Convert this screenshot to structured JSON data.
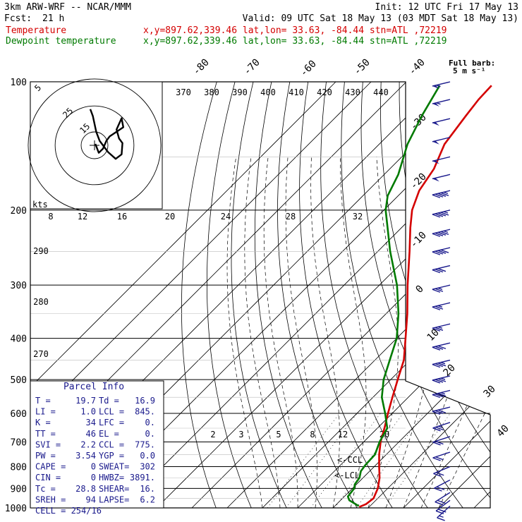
{
  "header": {
    "model": "3km ARW-WRF -- NCAR/MMM",
    "init": "Init: 12 UTC Fri 17 May 13",
    "fcst_label": "Fcst:",
    "fcst_value": "21 h",
    "valid": "Valid: 09 UTC Sat 18 May 13 (03 MDT Sat 18 May 13)",
    "temp_label": "Temperature",
    "temp_info": "x,y=897.62,339.46   lat,lon= 33.63, -84.44  stn=ATL ,72219",
    "dew_label": "Dewpoint temperature",
    "dew_info": "x,y=897.62,339.46   lat,lon= 33.63, -84.44  stn=ATL ,72219",
    "full_barb_1": "Full barb:",
    "full_barb_2": "5 m s⁻¹"
  },
  "colors": {
    "temperature": "#d40000",
    "dewpoint": "#007a00",
    "parcel_text": "#1a1a8c"
  },
  "chart_data": {
    "type": "line",
    "pressure_ticks": [
      "100",
      "200",
      "300",
      "400",
      "500",
      "600",
      "700",
      "800",
      "900",
      "1000"
    ],
    "pressure_values": [
      100,
      200,
      300,
      400,
      500,
      600,
      700,
      800,
      900,
      1000
    ],
    "ylim": [
      100,
      1000
    ],
    "y_scale": "log",
    "isotherm_labels": [
      "-80",
      "-70",
      "-60",
      "-50",
      "-40",
      "-30",
      "-20",
      "-10",
      "0",
      "10",
      "20",
      "30",
      "40"
    ],
    "theta_labels": [
      "370",
      "380",
      "390",
      "400",
      "410",
      "420",
      "430",
      "440"
    ],
    "theta_left_labels": [
      "290",
      "280",
      "270"
    ],
    "mixing_ratio_labels": [
      "2",
      "3",
      "5",
      "8",
      "12",
      "20"
    ],
    "hodograph_axis_labels": [
      "8",
      "12",
      "16",
      "20",
      "24",
      "28",
      "32"
    ],
    "hodograph_unit": "kts",
    "hodograph_ring_labels": [
      "5",
      "25",
      "15"
    ],
    "hodograph_points": [
      [
        -0.5,
        -16
      ],
      [
        -0.2,
        -13
      ],
      [
        0.2,
        -6
      ],
      [
        0.6,
        -2
      ],
      [
        1.6,
        3
      ],
      [
        2.5,
        6
      ],
      [
        3.2,
        4
      ],
      [
        3.3,
        -1
      ],
      [
        2.9,
        -3
      ],
      [
        2.6,
        -7
      ],
      [
        3.2,
        -12
      ],
      [
        3.4,
        -8
      ],
      [
        1.8,
        -4
      ],
      [
        1.4,
        -2
      ],
      [
        1.0,
        1.5
      ],
      [
        0.5,
        3.3
      ],
      [
        0.1,
        -0.6
      ]
    ],
    "annotations": [
      "<-CCL",
      "<-LCL"
    ],
    "series": [
      {
        "name": "Temperature",
        "points": [
          [
            995,
            17.2
          ],
          [
            980,
            18.3
          ],
          [
            950,
            18.8
          ],
          [
            900,
            17.2
          ],
          [
            850,
            14.7
          ],
          [
            800,
            11.4
          ],
          [
            750,
            8.0
          ],
          [
            700,
            4.8
          ],
          [
            650,
            2.0
          ],
          [
            600,
            -1.2
          ],
          [
            550,
            -4.5
          ],
          [
            500,
            -8.0
          ],
          [
            450,
            -11.8
          ],
          [
            400,
            -17.5
          ],
          [
            350,
            -24.0
          ],
          [
            300,
            -32.0
          ],
          [
            250,
            -41.0
          ],
          [
            220,
            -47.5
          ],
          [
            200,
            -52.0
          ],
          [
            180,
            -55.5
          ],
          [
            160,
            -57.5
          ],
          [
            140,
            -61.5
          ],
          [
            120,
            -63.5
          ],
          [
            110,
            -64.5
          ],
          [
            102,
            -64.8
          ]
        ]
      },
      {
        "name": "Dewpoint temperature",
        "points": [
          [
            990,
            16.8
          ],
          [
            960,
            12.5
          ],
          [
            940,
            11.0
          ],
          [
            900,
            10.5
          ],
          [
            880,
            9.5
          ],
          [
            850,
            9.0
          ],
          [
            820,
            7.5
          ],
          [
            790,
            7.0
          ],
          [
            750,
            6.8
          ],
          [
            700,
            4.5
          ],
          [
            650,
            2.8
          ],
          [
            600,
            -2.0
          ],
          [
            550,
            -7.5
          ],
          [
            500,
            -12.0
          ],
          [
            450,
            -15.8
          ],
          [
            400,
            -20.0
          ],
          [
            350,
            -26.5
          ],
          [
            300,
            -35.0
          ],
          [
            250,
            -46.5
          ],
          [
            200,
            -59.5
          ],
          [
            185,
            -63.0
          ],
          [
            165,
            -66.0
          ],
          [
            140,
            -72.0
          ],
          [
            120,
            -76.0
          ],
          [
            102,
            -79.5
          ]
        ]
      }
    ]
  },
  "parcel": {
    "title": "Parcel Info",
    "rows": [
      [
        "T    =",
        "19.7",
        "Td  =",
        "16.9"
      ],
      [
        "LI   =",
        "1.0",
        "LCL =",
        "845."
      ],
      [
        "K    =",
        "34",
        "LFC =",
        "0."
      ],
      [
        "TT   =",
        "46",
        "EL  =",
        "0."
      ],
      [
        "SVI  =",
        "2.2",
        "CCL =",
        "775."
      ],
      [
        "PW   =",
        "3.54",
        "YGP =",
        "0.0"
      ],
      [
        "CAPE =",
        "0",
        "SWEAT=",
        "302"
      ],
      [
        "CIN  =",
        "0",
        "HWBZ=",
        "3891."
      ],
      [
        "Tc   =",
        "28.8",
        "SHEAR=",
        "16."
      ],
      [
        "SREH =",
        "94",
        "LAPSE=",
        "6.2"
      ]
    ],
    "cell": "CELL = 254/16"
  },
  "wind_barbs": [
    {
      "p": 100,
      "dir": 255,
      "speed": 55
    },
    {
      "p": 110,
      "dir": 255,
      "speed": 55
    },
    {
      "p": 122,
      "dir": 255,
      "speed": 50
    },
    {
      "p": 135,
      "dir": 255,
      "speed": 50
    },
    {
      "p": 150,
      "dir": 255,
      "speed": 50
    },
    {
      "p": 165,
      "dir": 255,
      "speed": 50
    },
    {
      "p": 180,
      "dir": 255,
      "speed": 45
    },
    {
      "p": 200,
      "dir": 255,
      "speed": 45
    },
    {
      "p": 222,
      "dir": 255,
      "speed": 45
    },
    {
      "p": 245,
      "dir": 255,
      "speed": 40
    },
    {
      "p": 270,
      "dir": 255,
      "speed": 30
    },
    {
      "p": 300,
      "dir": 255,
      "speed": 25
    },
    {
      "p": 330,
      "dir": 255,
      "speed": 25
    },
    {
      "p": 370,
      "dir": 255,
      "speed": 25
    },
    {
      "p": 410,
      "dir": 255,
      "speed": 30
    },
    {
      "p": 450,
      "dir": 255,
      "speed": 35
    },
    {
      "p": 490,
      "dir": 255,
      "speed": 35
    },
    {
      "p": 530,
      "dir": 255,
      "speed": 35
    },
    {
      "p": 580,
      "dir": 255,
      "speed": 30
    },
    {
      "p": 630,
      "dir": 250,
      "speed": 25
    },
    {
      "p": 680,
      "dir": 250,
      "speed": 20
    },
    {
      "p": 740,
      "dir": 250,
      "speed": 20
    },
    {
      "p": 800,
      "dir": 245,
      "speed": 20
    },
    {
      "p": 860,
      "dir": 240,
      "speed": 20
    },
    {
      "p": 920,
      "dir": 235,
      "speed": 20
    },
    {
      "p": 960,
      "dir": 230,
      "speed": 20
    },
    {
      "p": 990,
      "dir": 225,
      "speed": 15
    }
  ]
}
